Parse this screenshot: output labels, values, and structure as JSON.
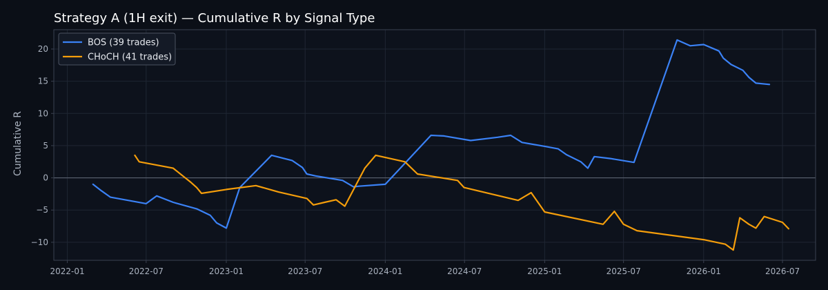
{
  "chart_data": {
    "type": "line",
    "title": "Strategy A (1H exit) — Cumulative R by Signal Type",
    "xlabel": "",
    "ylabel": "Cumulative R",
    "x_type": "date",
    "xlim": [
      "2021-12-01",
      "2026-09-15"
    ],
    "ylim": [
      -12.8,
      23
    ],
    "x_ticks": [
      "2022-01",
      "2022-07",
      "2023-01",
      "2023-07",
      "2024-01",
      "2024-07",
      "2025-01",
      "2025-07",
      "2026-01",
      "2026-07"
    ],
    "y_ticks": [
      -10,
      -5,
      0,
      5,
      10,
      15,
      20
    ],
    "grid": true,
    "zero_line": true,
    "legend": "top-left",
    "colors": {
      "background": "#0b0f17",
      "plot_background": "#0d121c",
      "grid": "#1f2633",
      "zero_line": "#5b6270",
      "axis": "#3a4150",
      "text": "#aab2bf",
      "title": "#ffffff"
    },
    "series": [
      {
        "name": "BOS (39 trades)",
        "color": "#3b82f6",
        "points": [
          [
            "2022-03-01",
            -1.0
          ],
          [
            "2022-03-20",
            -2.0
          ],
          [
            "2022-04-10",
            -3.0
          ],
          [
            "2022-07-01",
            -4.0
          ],
          [
            "2022-07-25",
            -2.8
          ],
          [
            "2022-09-01",
            -3.8
          ],
          [
            "2022-10-25",
            -4.8
          ],
          [
            "2022-11-25",
            -5.8
          ],
          [
            "2022-12-10",
            -7.0
          ],
          [
            "2023-01-01",
            -7.8
          ],
          [
            "2023-02-01",
            -1.5
          ],
          [
            "2023-04-15",
            3.5
          ],
          [
            "2023-06-01",
            2.7
          ],
          [
            "2023-06-25",
            1.6
          ],
          [
            "2023-07-05",
            0.6
          ],
          [
            "2023-07-25",
            0.3
          ],
          [
            "2023-09-25",
            -0.4
          ],
          [
            "2023-10-20",
            -1.4
          ],
          [
            "2023-11-01",
            -1.3
          ],
          [
            "2024-01-01",
            -1.0
          ],
          [
            "2024-04-15",
            6.6
          ],
          [
            "2024-05-15",
            6.5
          ],
          [
            "2024-07-15",
            5.8
          ],
          [
            "2024-09-15",
            6.3
          ],
          [
            "2024-10-15",
            6.6
          ],
          [
            "2024-11-10",
            5.5
          ],
          [
            "2025-01-01",
            4.9
          ],
          [
            "2025-02-01",
            4.5
          ],
          [
            "2025-02-20",
            3.6
          ],
          [
            "2025-03-25",
            2.5
          ],
          [
            "2025-04-10",
            1.5
          ],
          [
            "2025-04-25",
            3.3
          ],
          [
            "2025-06-01",
            3.0
          ],
          [
            "2025-07-25",
            2.4
          ],
          [
            "2025-11-01",
            21.4
          ],
          [
            "2025-12-01",
            20.5
          ],
          [
            "2026-01-01",
            20.7
          ],
          [
            "2026-02-05",
            19.7
          ],
          [
            "2026-02-15",
            18.6
          ],
          [
            "2026-03-05",
            17.6
          ],
          [
            "2026-04-01",
            16.7
          ],
          [
            "2026-04-15",
            15.6
          ],
          [
            "2026-05-01",
            14.7
          ],
          [
            "2026-06-01",
            14.5
          ]
        ]
      },
      {
        "name": "CHoCH (41 trades)",
        "color": "#f59e0b",
        "points": [
          [
            "2022-06-05",
            3.5
          ],
          [
            "2022-06-15",
            2.5
          ],
          [
            "2022-09-01",
            1.5
          ],
          [
            "2022-09-25",
            0.2
          ],
          [
            "2022-10-10",
            -0.6
          ],
          [
            "2022-10-25",
            -1.5
          ],
          [
            "2022-11-05",
            -2.4
          ],
          [
            "2023-01-01",
            -1.8
          ],
          [
            "2023-03-10",
            -1.2
          ],
          [
            "2023-05-01",
            -2.2
          ],
          [
            "2023-07-05",
            -3.2
          ],
          [
            "2023-07-20",
            -4.2
          ],
          [
            "2023-08-15",
            -3.8
          ],
          [
            "2023-09-10",
            -3.4
          ],
          [
            "2023-09-30",
            -4.4
          ],
          [
            "2023-11-15",
            1.5
          ],
          [
            "2023-12-10",
            3.5
          ],
          [
            "2024-02-15",
            2.5
          ],
          [
            "2024-03-15",
            0.6
          ],
          [
            "2024-06-15",
            -0.4
          ],
          [
            "2024-06-30",
            -1.5
          ],
          [
            "2024-11-01",
            -3.5
          ],
          [
            "2024-12-01",
            -2.3
          ],
          [
            "2025-01-01",
            -5.3
          ],
          [
            "2025-05-15",
            -7.2
          ],
          [
            "2025-06-10",
            -5.2
          ],
          [
            "2025-07-01",
            -7.2
          ],
          [
            "2025-08-01",
            -8.2
          ],
          [
            "2026-01-01",
            -9.6
          ],
          [
            "2026-02-20",
            -10.3
          ],
          [
            "2026-03-10",
            -11.2
          ],
          [
            "2026-03-25",
            -6.2
          ],
          [
            "2026-04-15",
            -7.2
          ],
          [
            "2026-05-01",
            -7.8
          ],
          [
            "2026-05-20",
            -6.0
          ],
          [
            "2026-07-01",
            -6.9
          ],
          [
            "2026-07-15",
            -7.9
          ]
        ]
      }
    ]
  }
}
